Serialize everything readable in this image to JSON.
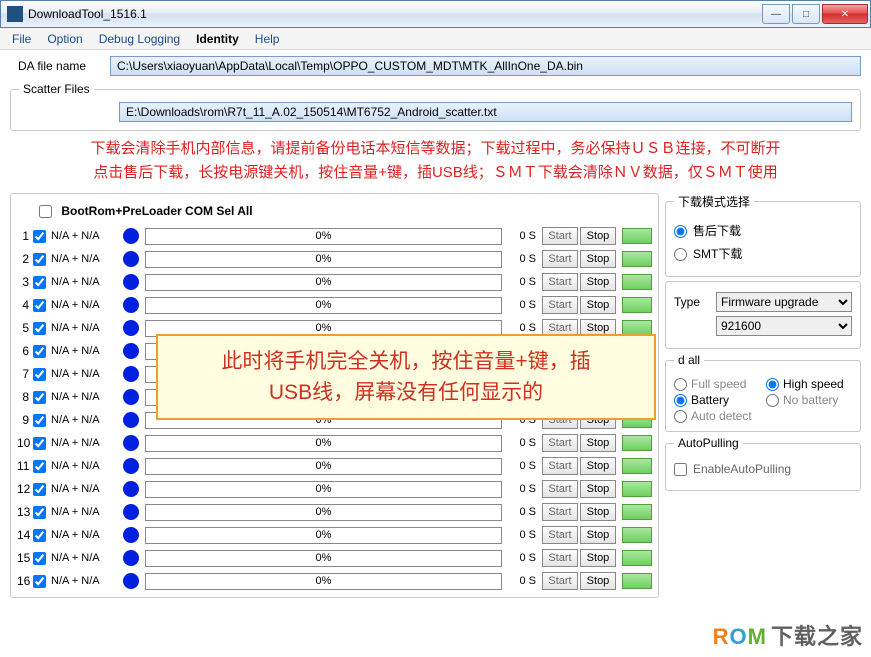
{
  "window": {
    "title": "DownloadTool_1516.1"
  },
  "menu": [
    "File",
    "Option",
    "Debug Logging",
    "Identity",
    "Help"
  ],
  "menu_active_index": 3,
  "da": {
    "label": "DA file name",
    "path": "C:\\Users\\xiaoyuan\\AppData\\Local\\Temp\\OPPO_CUSTOM_MDT\\MTK_AllInOne_DA.bin"
  },
  "scatter": {
    "legend": "Scatter Files",
    "path": "E:\\Downloads\\rom\\R7t_11_A.02_150514\\MT6752_Android_scatter.txt"
  },
  "warning_line1": "下载会清除手机内部信息，请提前备份电话本短信等数据；下载过程中，务必保持ＵＳＢ连接，不可断开",
  "warning_line2": "点击售后下载，长按电源键关机，按住音量+键，插USB线；ＳＭＴ下载会清除ＮＶ数据，仅ＳＭＴ使用",
  "sel_all": "BootRom+PreLoader COM Sel All",
  "row": {
    "na": "N/A + N/A",
    "pct": "0%",
    "time": "0 S",
    "start": "Start",
    "stop": "Stop"
  },
  "row_count": 16,
  "overlay_line1": "此时将手机完全关机，按住音量+键，插",
  "overlay_line2": "USB线，屏幕没有任何显示的",
  "mode": {
    "legend": "下载模式选择",
    "opt1": "售后下载",
    "opt2": "SMT下载"
  },
  "type": {
    "label": "Type",
    "value": "Firmware upgrade"
  },
  "baud": {
    "value": "921600"
  },
  "speed": {
    "legend": "d all",
    "full": "Full speed",
    "high": "High speed",
    "battery": "Battery",
    "nobatt": "No battery",
    "auto": "Auto detect"
  },
  "autopull": {
    "legend": "AutoPulling",
    "enable": "EnableAutoPulling"
  },
  "watermark": {
    "r": "R",
    "o": "O",
    "m": "M",
    "cn": "下载之家"
  }
}
